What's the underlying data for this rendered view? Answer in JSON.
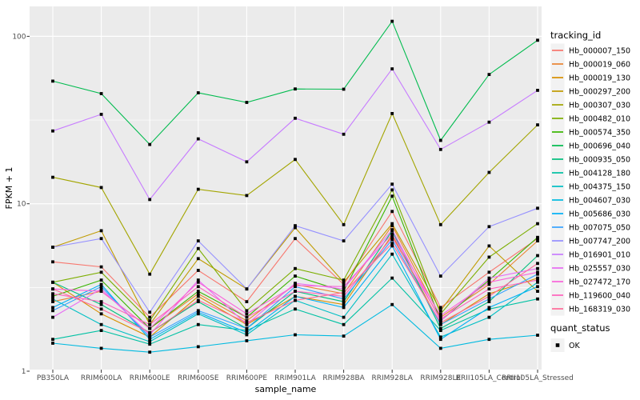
{
  "chart_data": {
    "type": "line",
    "title": "",
    "xlabel": "sample_name",
    "ylabel": "FPKM + 1",
    "y_scale": "log10",
    "y_ticks": [
      "1",
      "10",
      "100"
    ],
    "y_tick_values": [
      1,
      10,
      100
    ],
    "y_minor_values": [
      3.1623,
      31.623
    ],
    "ylim_displayed": [
      1.1,
      150
    ],
    "grid": "white major and minor horizontal, major vertical per category",
    "panel_bg": "#EBEBEB",
    "legend_key_bg": "#F2F2F2",
    "tick_label_color": "#4D4D4D",
    "point_marker": "small black filled square",
    "legend": {
      "position": "right",
      "tracking_title": "tracking_id",
      "quant_title": "quant_status",
      "quant_value": "OK"
    },
    "categories": [
      "PB350LA",
      "RRIM600LA",
      "RRIM600LE",
      "RRIM600SE",
      "RRIM600PE",
      "RRIM901LA",
      "RRIM928BA",
      "RRIM928LA",
      "RRIM928LE",
      "RRII105LA_Control",
      "RRII105LA_Stressed"
    ],
    "series": [
      {
        "name": "Hb_000007_150",
        "color": "#F8766D",
        "values": [
          4.5,
          4.2,
          2.1,
          4.0,
          2.6,
          6.2,
          3.3,
          9.0,
          2.4,
          3.9,
          6.2
        ]
      },
      {
        "name": "Hb_000019_060",
        "color": "#EA8331",
        "values": [
          2.6,
          3.0,
          1.8,
          2.9,
          2.0,
          3.3,
          2.9,
          7.4,
          2.1,
          3.3,
          6.0
        ]
      },
      {
        "name": "Hb_000019_130",
        "color": "#D89000",
        "values": [
          3.4,
          2.2,
          1.6,
          2.8,
          1.9,
          2.8,
          2.5,
          6.5,
          1.9,
          2.9,
          3.6
        ]
      },
      {
        "name": "Hb_000297_200",
        "color": "#C09B00",
        "values": [
          5.5,
          6.9,
          1.9,
          4.7,
          3.1,
          7.2,
          3.4,
          7.6,
          2.3,
          5.6,
          3.0
        ]
      },
      {
        "name": "Hb_000307_030",
        "color": "#A3A500",
        "values": [
          14.4,
          12.5,
          3.8,
          12.2,
          11.2,
          18.4,
          7.5,
          34.6,
          7.5,
          15.4,
          29.6
        ]
      },
      {
        "name": "Hb_000482_010",
        "color": "#7CAE00",
        "values": [
          3.4,
          3.9,
          2.0,
          5.4,
          2.3,
          4.1,
          3.5,
          12.1,
          2.2,
          4.8,
          7.6
        ]
      },
      {
        "name": "Hb_000574_350",
        "color": "#39B600",
        "values": [
          2.8,
          3.5,
          1.8,
          3.0,
          2.1,
          3.7,
          3.0,
          11.1,
          2.0,
          3.5,
          6.3
        ]
      },
      {
        "name": "Hb_000696_040",
        "color": "#00BB4E",
        "values": [
          54,
          45.5,
          22.6,
          46,
          40.3,
          48.5,
          48.3,
          123,
          23.9,
          59.2,
          94.7
        ]
      },
      {
        "name": "Hb_000935_050",
        "color": "#00BF7D",
        "values": [
          3.4,
          2.5,
          1.7,
          2.6,
          1.8,
          3.0,
          2.6,
          6.9,
          1.8,
          2.6,
          4.9
        ]
      },
      {
        "name": "Hb_004128_180",
        "color": "#00C1A3",
        "values": [
          1.55,
          1.75,
          1.45,
          1.9,
          1.75,
          2.35,
          1.9,
          3.6,
          1.75,
          2.35,
          2.7
        ]
      },
      {
        "name": "Hb_004375_150",
        "color": "#00BFC4",
        "values": [
          2.7,
          1.9,
          1.5,
          2.2,
          1.65,
          2.65,
          2.1,
          5.0,
          1.6,
          2.1,
          3.4
        ]
      },
      {
        "name": "Hb_004607_030",
        "color": "#00BAE0",
        "values": [
          1.47,
          1.37,
          1.3,
          1.4,
          1.52,
          1.65,
          1.62,
          2.5,
          1.37,
          1.55,
          1.64
        ]
      },
      {
        "name": "Hb_005686_030",
        "color": "#00B0F6",
        "values": [
          2.4,
          3.3,
          1.55,
          2.25,
          1.7,
          2.8,
          2.4,
          5.6,
          1.55,
          2.4,
          3.2
        ]
      },
      {
        "name": "Hb_007075_050",
        "color": "#35A2FF",
        "values": [
          2.3,
          3.2,
          1.6,
          2.3,
          1.8,
          3.2,
          2.7,
          6.1,
          1.9,
          2.7,
          3.8
        ]
      },
      {
        "name": "Hb_007747_200",
        "color": "#9590FF",
        "values": [
          5.5,
          6.2,
          2.25,
          6.0,
          3.1,
          7.4,
          6.0,
          13.1,
          3.7,
          7.3,
          9.4
        ]
      },
      {
        "name": "Hb_016901_010",
        "color": "#C77CFF",
        "values": [
          27.2,
          34.2,
          10.6,
          24.4,
          17.8,
          32.4,
          26.0,
          63.9,
          21.1,
          30.7,
          47.6
        ]
      },
      {
        "name": "Hb_025557_030",
        "color": "#E76BF3",
        "values": [
          2.1,
          3.1,
          1.65,
          3.5,
          1.9,
          3.35,
          3.1,
          7.0,
          2.0,
          3.6,
          4.1
        ]
      },
      {
        "name": "Hb_027472_170",
        "color": "#FA62DB",
        "values": [
          3.1,
          3.0,
          1.8,
          3.4,
          2.2,
          3.25,
          3.2,
          6.6,
          2.15,
          3.4,
          3.9
        ]
      },
      {
        "name": "Hb_119600_040",
        "color": "#FF62BC",
        "values": [
          2.9,
          2.6,
          1.9,
          3.2,
          2.1,
          3.0,
          2.8,
          6.3,
          2.05,
          3.1,
          3.5
        ]
      },
      {
        "name": "Hb_168319_030",
        "color": "#FF6A98",
        "values": [
          3.1,
          2.35,
          1.7,
          2.65,
          1.95,
          2.65,
          2.95,
          5.8,
          1.95,
          2.8,
          4.4
        ]
      }
    ]
  }
}
